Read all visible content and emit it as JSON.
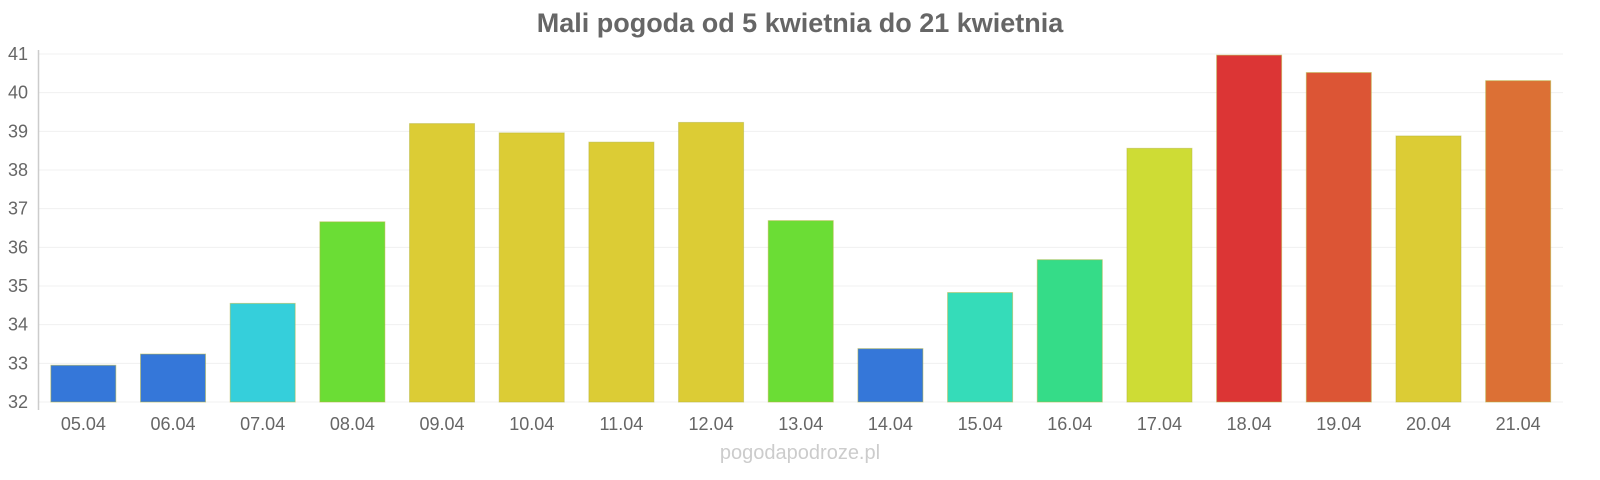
{
  "chart_data": {
    "type": "bar",
    "title": "Mali pogoda od 5 kwietnia do 21 kwietnia",
    "xlabel": "",
    "ylabel": "",
    "ylim": [
      32,
      41
    ],
    "yticks": [
      "32",
      "33",
      "34",
      "35",
      "36",
      "37",
      "38",
      "39",
      "40",
      "41"
    ],
    "grid": true,
    "categories": [
      "05.04",
      "06.04",
      "07.04",
      "08.04",
      "09.04",
      "10.04",
      "11.04",
      "12.04",
      "13.04",
      "14.04",
      "15.04",
      "16.04",
      "17.04",
      "18.04",
      "19.04",
      "20.04",
      "21.04"
    ],
    "values": [
      32.95,
      33.24,
      34.55,
      36.66,
      39.2,
      38.96,
      38.72,
      39.23,
      36.69,
      33.38,
      34.83,
      35.68,
      38.56,
      40.97,
      40.52,
      38.88,
      40.31
    ],
    "colors": [
      "#3577d9",
      "#3577d9",
      "#35cfdb",
      "#6bdd35",
      "#dccc35",
      "#dccc35",
      "#dccc35",
      "#dccc35",
      "#6bdd35",
      "#3577d9",
      "#35dcb9",
      "#35dc88",
      "#cedc35",
      "#dc3535",
      "#dc5535",
      "#dccc35",
      "#dc7035"
    ]
  },
  "footer": "pogodapodroze.pl"
}
